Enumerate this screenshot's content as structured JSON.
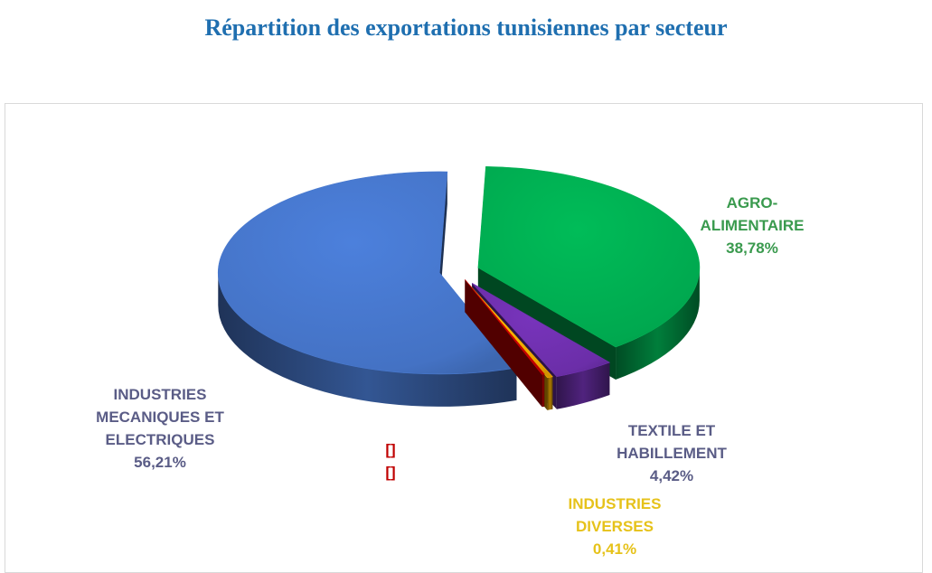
{
  "title": "Répartition des exportations tunisiennes par secteur",
  "chart_data": {
    "type": "pie",
    "title": "Répartition des exportations tunisiennes par secteur",
    "style": "3d-exploded",
    "slices": [
      {
        "label_lines": [
          "AGRO-",
          "ALIMENTAIRE"
        ],
        "value_label": "38,78%",
        "value": 38.78,
        "color": "#00a84f",
        "label_color": "#3a9a4e"
      },
      {
        "label_lines": [
          "TEXTILE ET",
          "HABILLEMENT"
        ],
        "value_label": "4,42%",
        "value": 4.42,
        "color": "#6b2ea8",
        "label_color": "#5a5c86"
      },
      {
        "label_lines": [
          "INDUSTRIES",
          "DIVERSES"
        ],
        "value_label": "0,41%",
        "value": 0.41,
        "color": "#e8a400",
        "label_color": "#e6c21a"
      },
      {
        "label_lines": [
          "[]"
        ],
        "value_label": "[]",
        "value": 0.18,
        "color": "#c00000",
        "label_color": "#c00000"
      },
      {
        "label_lines": [
          "INDUSTRIES",
          "MECANIQUES ET",
          "ELECTRIQUES"
        ],
        "value_label": "56,21%",
        "value": 56.21,
        "color": "#4472c4",
        "label_color": "#5a5c86"
      }
    ]
  }
}
